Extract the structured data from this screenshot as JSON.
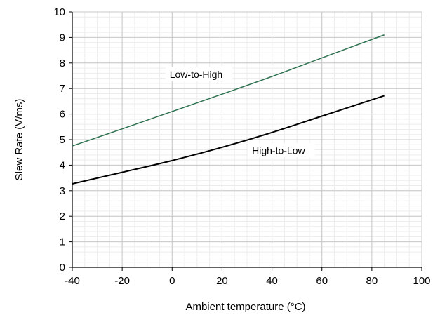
{
  "chart_data": {
    "type": "line",
    "xlabel": "Ambient temperature (°C)",
    "ylabel": "Slew Rate (V/ms)",
    "xlim": [
      -40,
      100
    ],
    "ylim": [
      0,
      10
    ],
    "x_ticks": [
      -40,
      -20,
      0,
      20,
      40,
      60,
      80,
      100
    ],
    "y_ticks": [
      0,
      1,
      2,
      3,
      4,
      5,
      6,
      7,
      8,
      9,
      10
    ],
    "x_tick_labels": [
      "-40",
      "-20",
      "0",
      "20",
      "40",
      "60",
      "80",
      "100"
    ],
    "y_tick_labels": [
      "0",
      "1",
      "2",
      "3",
      "4",
      "5",
      "6",
      "7",
      "8",
      "9",
      "10"
    ],
    "grid": true,
    "minor_grid": true,
    "series": [
      {
        "name": "Low-to-High",
        "color": "#2e7150",
        "x": [
          -40,
          -20,
          0,
          20,
          40,
          60,
          85
        ],
        "y": [
          4.75,
          5.42,
          6.1,
          6.78,
          7.47,
          8.2,
          9.1
        ]
      },
      {
        "name": "High-to-Low",
        "color": "#000000",
        "x": [
          -40,
          -20,
          0,
          20,
          40,
          60,
          85
        ],
        "y": [
          3.27,
          3.72,
          4.18,
          4.7,
          5.28,
          5.92,
          6.72
        ]
      }
    ],
    "annotations": [
      {
        "text": "Low-to-High",
        "x": -1,
        "y": 7.45
      },
      {
        "text": "High-to-Low",
        "x": 32,
        "y": 4.47
      }
    ]
  }
}
